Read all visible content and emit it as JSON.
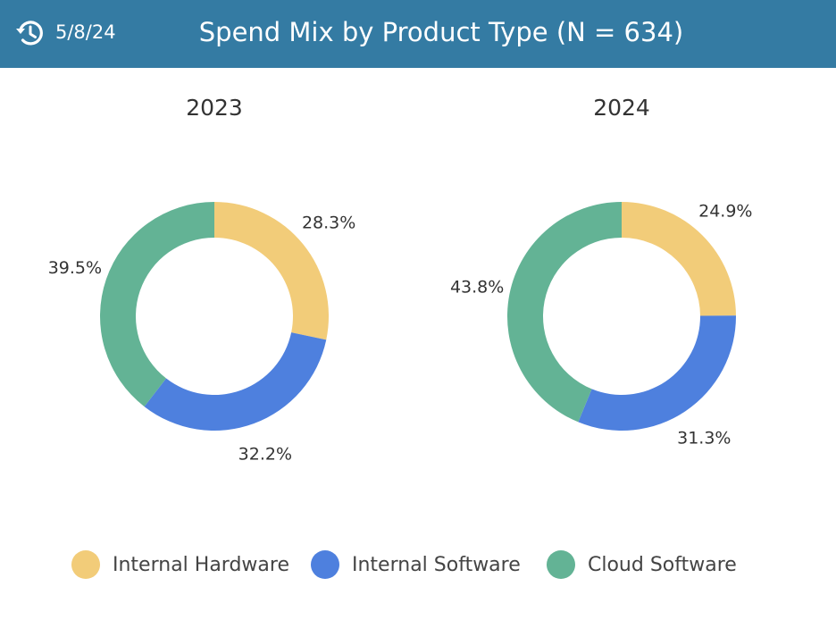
{
  "header": {
    "date": "5/8/24",
    "title": "Spend Mix by Product Type (N = 634)",
    "history_icon": "history-icon",
    "background": "#347ba3"
  },
  "legend": {
    "items": [
      {
        "label": "Internal Hardware",
        "color": "#f2cc79"
      },
      {
        "label": "Internal Software",
        "color": "#4e80de"
      },
      {
        "label": "Cloud Software",
        "color": "#63b395"
      }
    ]
  },
  "chart_data": [
    {
      "type": "pie",
      "title": "2023",
      "categories": [
        "Internal Hardware",
        "Internal Software",
        "Cloud Software"
      ],
      "values": [
        28.3,
        32.2,
        39.5
      ],
      "value_labels": [
        "28.3%",
        "32.2%",
        "39.5%"
      ],
      "colors": [
        "#f2cc79",
        "#4e80de",
        "#63b395"
      ],
      "donut": true,
      "legend": "bottom"
    },
    {
      "type": "pie",
      "title": "2024",
      "categories": [
        "Internal Hardware",
        "Internal Software",
        "Cloud Software"
      ],
      "values": [
        24.9,
        31.3,
        43.8
      ],
      "value_labels": [
        "24.9%",
        "31.3%",
        "43.8%"
      ],
      "colors": [
        "#f2cc79",
        "#4e80de",
        "#63b395"
      ],
      "donut": true,
      "legend": "bottom"
    }
  ]
}
